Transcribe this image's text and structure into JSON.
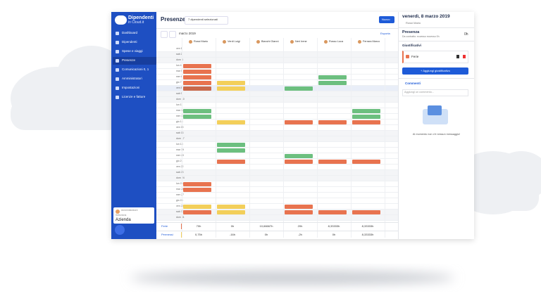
{
  "logo": {
    "title": "Dipendenti",
    "subtitle": "in Cloud.it"
  },
  "sidebar": {
    "items": [
      "Dashboard",
      "Dipendenti",
      "Spese e viaggi",
      "Presenze",
      "Comunicazioni 0, 1",
      "Amministratori",
      "Impostazioni",
      "Licenze e fatture"
    ],
    "active": 3,
    "user": {
      "role": "Amministratore",
      "label": "Seleziona",
      "company": "Azienda"
    }
  },
  "header": {
    "title": "Presenze",
    "filter": "7 dipendenti selezionati",
    "new_button": "Nuovo",
    "month": "marzo 2019",
    "export": "Esporta"
  },
  "calendar": {
    "month_label": "marzo",
    "employees": [
      "Rossi Mario",
      "Verdi Luigi",
      "Bianchi Gianni",
      "Neri Irene",
      "Russo Luca",
      "Ferrara Marco"
    ],
    "days": [
      "ven 1",
      "sab 2",
      "dom 3",
      "lun 4",
      "mar 5",
      "mer 6",
      "gio 7",
      "ven 8",
      "sab 9",
      "dom 10",
      "lun 11",
      "mar 12",
      "mer 13",
      "gio 14",
      "ven 15",
      "sab 16",
      "dom 17",
      "lun 18",
      "mar 19",
      "mer 20",
      "gio 21",
      "ven 22",
      "sab 23",
      "dom 24",
      "lun 25",
      "mar 26",
      "mer 27",
      "gio 28",
      "ven 29",
      "sab 30",
      "dom 31"
    ],
    "totals": [
      {
        "label": "Ferie",
        "values": [
          "70h",
          "0h",
          "10,66667h",
          "20h",
          "8,33333h",
          "8,33333h"
        ]
      },
      {
        "label": "Permessi",
        "values": [
          "0,75h",
          "-16h",
          "0h",
          "-2h",
          "0h",
          "8,33333h"
        ]
      }
    ]
  },
  "panel": {
    "date": "venerdì, 8 marzo 2019",
    "employee": "Rossi Mario",
    "section": "Presenza",
    "contract": "Da contratto: eccesso eccesso 0h",
    "hours": "0h",
    "justifications": "Giustificativi",
    "justification_item": "Ferie",
    "add_button": "+ Aggiungi giustificativo",
    "comments": "Commenti",
    "comment_placeholder": "Aggiungi un commento...",
    "empty_message": "Al momento non c'è nessun messaggio!"
  }
}
